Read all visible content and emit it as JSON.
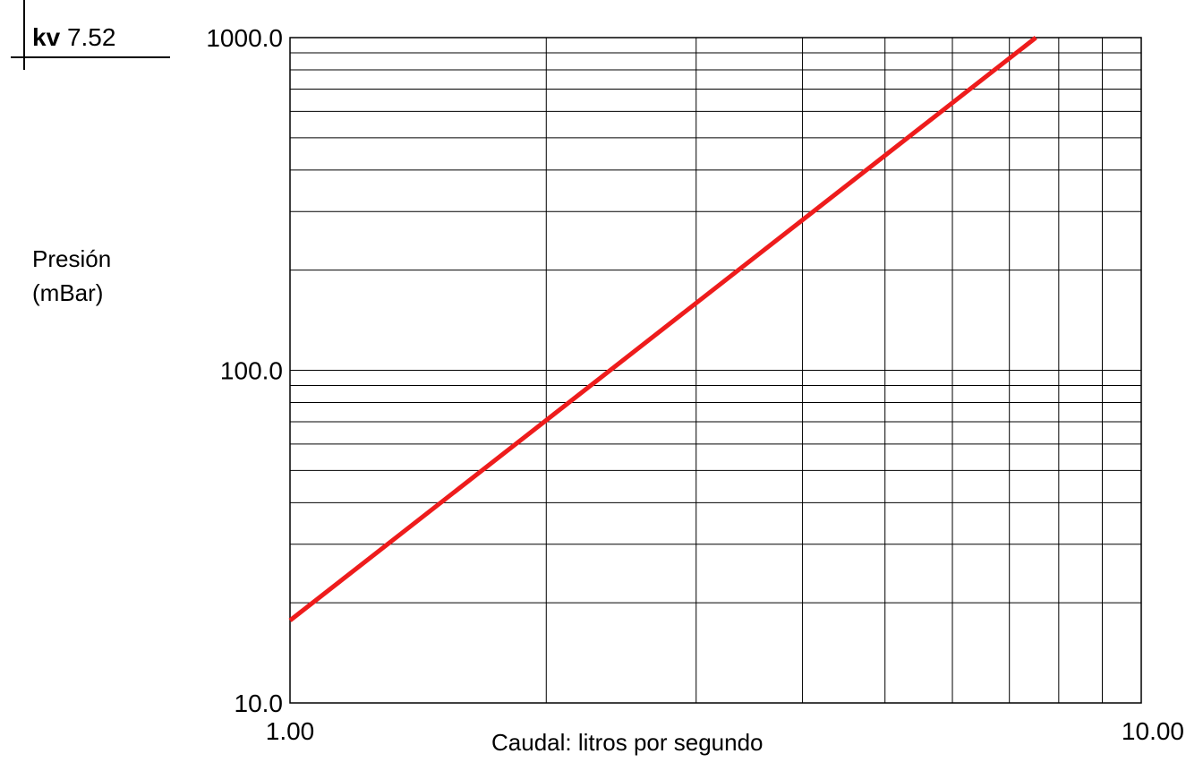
{
  "kv": {
    "label": "kv",
    "value": "7.52"
  },
  "chart_data": {
    "type": "line",
    "x_scale": "log",
    "y_scale": "log",
    "xlabel": "Caudal: litros por segundo",
    "ylabel_lines": [
      "Presión",
      "(mBar)"
    ],
    "xlim": [
      1,
      10
    ],
    "ylim": [
      10,
      1000
    ],
    "x_tick_labels": [
      {
        "value": 1,
        "label": "1.00"
      },
      {
        "value": 10,
        "label": "10.00"
      }
    ],
    "y_tick_labels": [
      {
        "value": 10,
        "label": "10.0"
      },
      {
        "value": 100,
        "label": "100.0"
      },
      {
        "value": 1000,
        "label": "1000.0"
      }
    ],
    "x_gridlines": [
      2,
      3,
      4,
      5,
      6,
      7,
      8,
      9
    ],
    "y_gridlines": [
      20,
      30,
      40,
      50,
      60,
      70,
      80,
      90,
      100,
      200,
      300,
      400,
      500,
      600,
      700,
      800,
      900,
      1000
    ],
    "grid": true,
    "series": [
      {
        "x": [
          1.0,
          7.52
        ],
        "y": [
          17.7,
          1000
        ],
        "color": "#ee1c1c"
      }
    ]
  }
}
